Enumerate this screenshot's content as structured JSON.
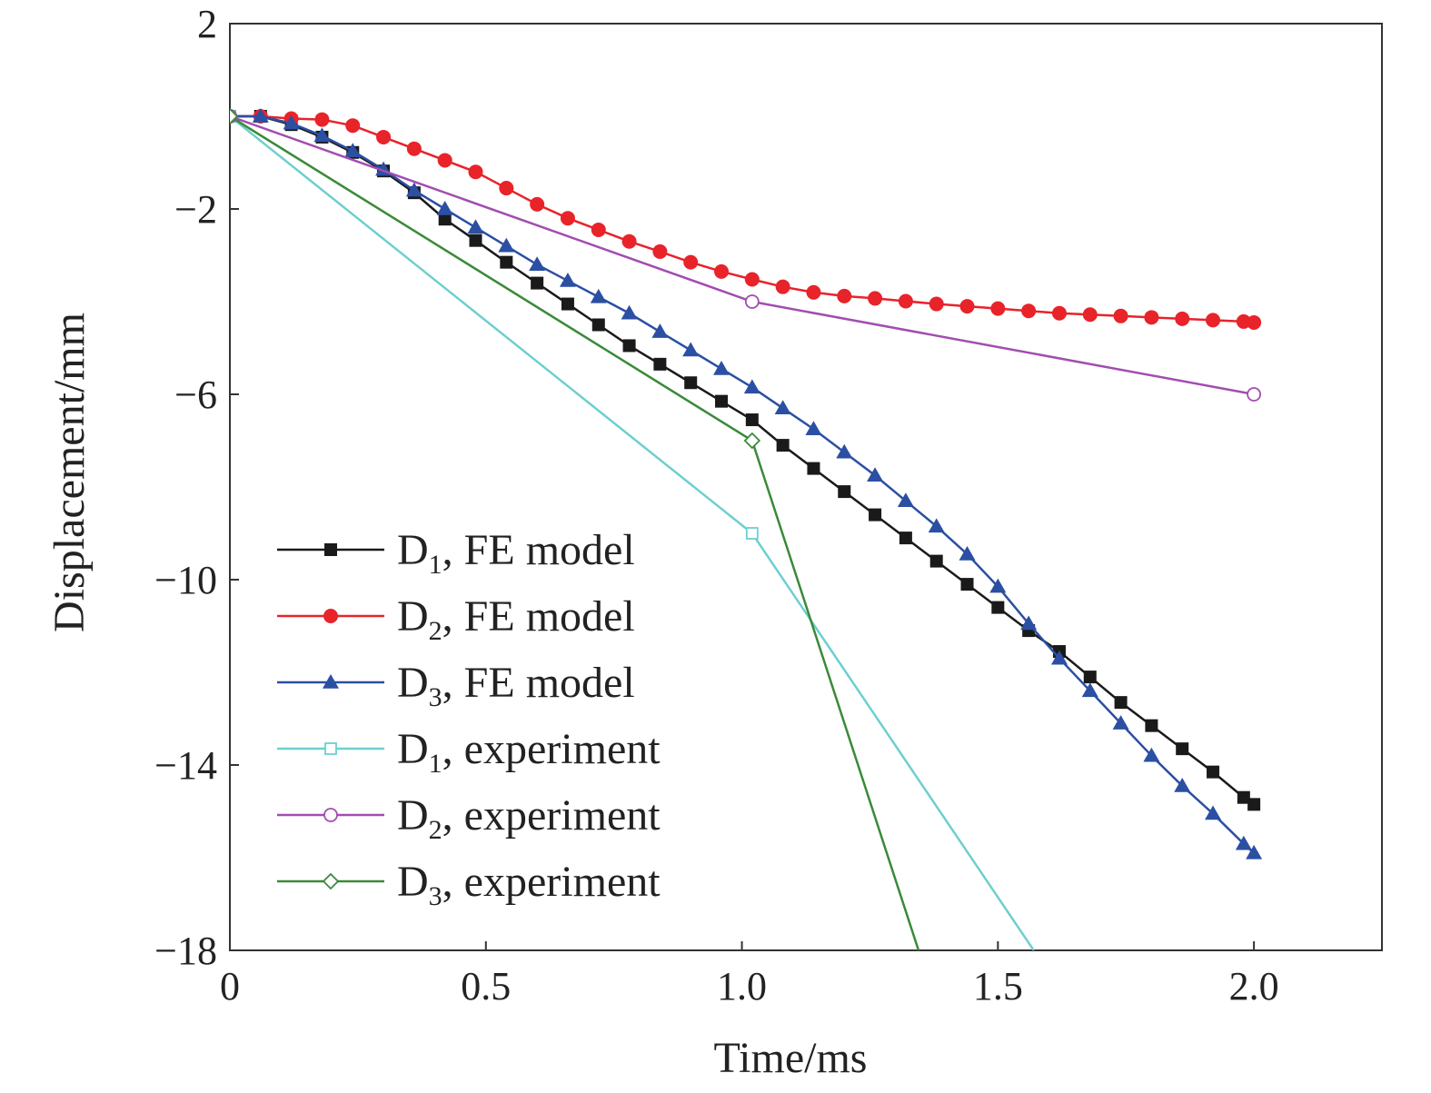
{
  "chart_data": {
    "type": "line",
    "xlabel": "Time/ms",
    "ylabel": "Displacement/mm",
    "xlim": [
      0,
      2.25
    ],
    "ylim": [
      -18,
      2
    ],
    "x_ticks": [
      0,
      0.5,
      1.0,
      1.5,
      2.0
    ],
    "x_tick_labels": [
      "0",
      "0.5",
      "1.0",
      "1.5",
      "2.0"
    ],
    "y_ticks": [
      2,
      -2,
      -6,
      -10,
      -14,
      -18
    ],
    "y_tick_labels": [
      "2",
      "−2",
      "−6",
      "−10",
      "−14",
      "−18"
    ],
    "grid": false,
    "legend_position": "bottom-left",
    "series": [
      {
        "name": "D1, FE model",
        "legend_main": "D",
        "legend_sub": "1",
        "legend_rest": ", FE model",
        "color": "#1a1a1a",
        "marker": "square-filled",
        "x": [
          0,
          0.06,
          0.12,
          0.18,
          0.24,
          0.3,
          0.36,
          0.42,
          0.48,
          0.54,
          0.6,
          0.66,
          0.72,
          0.78,
          0.84,
          0.9,
          0.96,
          1.02,
          1.08,
          1.14,
          1.2,
          1.26,
          1.32,
          1.38,
          1.44,
          1.5,
          1.56,
          1.62,
          1.68,
          1.74,
          1.8,
          1.86,
          1.92,
          1.98,
          2.0
        ],
        "y": [
          0,
          0,
          -0.18,
          -0.45,
          -0.78,
          -1.18,
          -1.65,
          -2.22,
          -2.68,
          -3.15,
          -3.6,
          -4.05,
          -4.5,
          -4.95,
          -5.35,
          -5.75,
          -6.15,
          -6.55,
          -7.1,
          -7.6,
          -8.1,
          -8.6,
          -9.1,
          -9.6,
          -10.1,
          -10.6,
          -11.1,
          -11.55,
          -12.1,
          -12.65,
          -13.15,
          -13.65,
          -14.15,
          -14.7,
          -14.85
        ]
      },
      {
        "name": "D2, FE model",
        "legend_main": "D",
        "legend_sub": "2",
        "legend_rest": ", FE model",
        "color": "#e8232a",
        "marker": "circle-filled",
        "x": [
          0,
          0.06,
          0.12,
          0.18,
          0.24,
          0.3,
          0.36,
          0.42,
          0.48,
          0.54,
          0.6,
          0.66,
          0.72,
          0.78,
          0.84,
          0.9,
          0.96,
          1.02,
          1.08,
          1.14,
          1.2,
          1.26,
          1.32,
          1.38,
          1.44,
          1.5,
          1.56,
          1.62,
          1.68,
          1.74,
          1.8,
          1.86,
          1.92,
          1.98,
          2.0
        ],
        "y": [
          0,
          0,
          -0.05,
          -0.07,
          -0.2,
          -0.45,
          -0.7,
          -0.95,
          -1.2,
          -1.55,
          -1.9,
          -2.2,
          -2.45,
          -2.7,
          -2.92,
          -3.15,
          -3.35,
          -3.52,
          -3.68,
          -3.8,
          -3.88,
          -3.93,
          -3.99,
          -4.05,
          -4.1,
          -4.15,
          -4.2,
          -4.25,
          -4.28,
          -4.31,
          -4.34,
          -4.37,
          -4.4,
          -4.43,
          -4.45
        ]
      },
      {
        "name": "D3, FE model",
        "legend_main": "D",
        "legend_sub": "3",
        "legend_rest": ", FE model",
        "color": "#2b4fa3",
        "marker": "triangle-filled",
        "x": [
          0,
          0.06,
          0.12,
          0.18,
          0.24,
          0.3,
          0.36,
          0.42,
          0.48,
          0.54,
          0.6,
          0.66,
          0.72,
          0.78,
          0.84,
          0.9,
          0.96,
          1.02,
          1.08,
          1.14,
          1.2,
          1.26,
          1.32,
          1.38,
          1.44,
          1.5,
          1.56,
          1.62,
          1.68,
          1.74,
          1.8,
          1.86,
          1.92,
          1.98,
          2.0
        ],
        "y": [
          0,
          0,
          -0.15,
          -0.42,
          -0.75,
          -1.15,
          -1.6,
          -2.0,
          -2.4,
          -2.8,
          -3.2,
          -3.55,
          -3.9,
          -4.25,
          -4.65,
          -5.05,
          -5.45,
          -5.85,
          -6.3,
          -6.75,
          -7.25,
          -7.75,
          -8.3,
          -8.85,
          -9.45,
          -10.15,
          -10.95,
          -11.7,
          -12.4,
          -13.1,
          -13.8,
          -14.45,
          -15.05,
          -15.7,
          -15.9
        ]
      },
      {
        "name": "D1, experiment",
        "legend_main": "D",
        "legend_sub": "1",
        "legend_rest": ", experiment",
        "color": "#6ecfcf",
        "marker": "square-open",
        "x": [
          0,
          1.02,
          1.57
        ],
        "y": [
          0,
          -9.0,
          -18.0
        ],
        "marker_indices": [
          0,
          1
        ]
      },
      {
        "name": "D2, experiment",
        "legend_main": "D",
        "legend_sub": "2",
        "legend_rest": ", experiment",
        "color": "#a24db0",
        "marker": "circle-open",
        "x": [
          0,
          1.02,
          2.0
        ],
        "y": [
          0,
          -4.0,
          -6.0
        ],
        "marker_indices": [
          0,
          1,
          2
        ]
      },
      {
        "name": "D3, experiment",
        "legend_main": "D",
        "legend_sub": "3",
        "legend_rest": ", experiment",
        "color": "#3a8a3a",
        "marker": "diamond-open",
        "x": [
          0,
          1.02,
          1.345
        ],
        "y": [
          0,
          -7.0,
          -18.0
        ],
        "marker_indices": [
          0,
          1
        ]
      }
    ]
  }
}
